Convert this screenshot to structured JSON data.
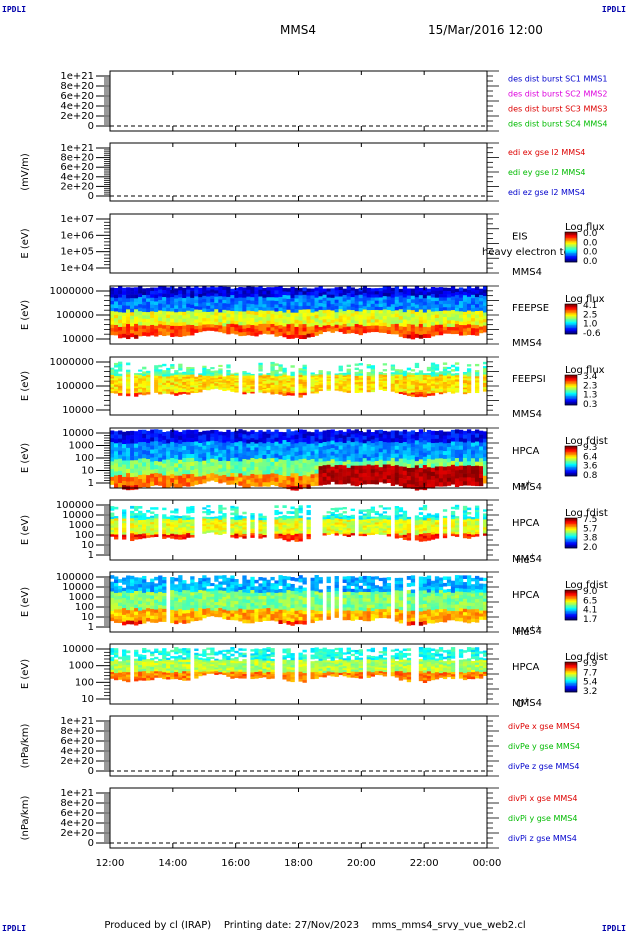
{
  "corner_labels": {
    "tl": "IPDLI",
    "tr": "IPDLI",
    "bl": "IPDLI",
    "br": "IPDLI"
  },
  "header": {
    "spacecraft": "MMS4",
    "datetime": "15/Mar/2016 12:00"
  },
  "footer": {
    "produced_by": "Produced by cl (IRAP)",
    "printing_date": "Printing date: 27/Nov/2023",
    "script_name": "mms_mms4_srvy_vue_web2.cl"
  },
  "colors": {
    "series_red": "#dd0000",
    "series_magenta": "#dd00dd",
    "series_green": "#00bb00",
    "series_blue": "#0000cc"
  },
  "chart_data": [
    {
      "id": "des-dist",
      "type": "line",
      "ylabel": "",
      "yticks": [
        "1e+21",
        "8e+20",
        "6e+20",
        "4e+20",
        "2e+20",
        "0"
      ],
      "series": [
        {
          "name": "des dist burst SC1 MMS1",
          "color": "#0000cc"
        },
        {
          "name": "des dist burst SC2 MMS2",
          "color": "#dd00dd"
        },
        {
          "name": "des dist burst SC3 MMS3",
          "color": "#dd0000"
        },
        {
          "name": "des dist burst SC4 MMS4",
          "color": "#00bb00"
        }
      ]
    },
    {
      "id": "edi-e",
      "type": "line",
      "ylabel": "(mV/m)",
      "yticks": [
        "1e+21",
        "8e+20",
        "6e+20",
        "4e+20",
        "2e+20",
        "0"
      ],
      "series": [
        {
          "name": "edi ex gse l2 MMS4",
          "color": "#dd0000"
        },
        {
          "name": "edi ey gse l2 MMS4",
          "color": "#00bb00"
        },
        {
          "name": "edi ez gse l2 MMS4",
          "color": "#0000cc"
        }
      ]
    },
    {
      "id": "eis",
      "type": "heatmap",
      "ylabel": "E (eV)",
      "yticks": [
        "1e+07",
        "1e+06",
        "1e+05",
        "1e+04"
      ],
      "instrument": [
        "EIS",
        "MMS4"
      ],
      "overlay_text": "heavy electron to",
      "colorbar": {
        "title": "Log flux",
        "ticks": [
          "0.0",
          "0.0",
          "0.0",
          "0.0"
        ]
      }
    },
    {
      "id": "feepse",
      "type": "heatmap",
      "ylabel": "E (eV)",
      "yticks": [
        "1000000",
        "100000",
        "10000"
      ],
      "instrument": [
        "FEEPSE",
        "MMS4"
      ],
      "colorbar": {
        "title": "Log flux",
        "ticks": [
          "4.1",
          "2.5",
          "1.0",
          "-0.6"
        ]
      }
    },
    {
      "id": "feepsi",
      "type": "heatmap",
      "ylabel": "E (eV)",
      "yticks": [
        "1000000",
        "100000",
        "10000"
      ],
      "instrument": [
        "FEEPSI",
        "MMS4"
      ],
      "colorbar": {
        "title": "Log flux",
        "ticks": [
          "3.4",
          "2.3",
          "1.3",
          "0.3"
        ]
      }
    },
    {
      "id": "hpca-h",
      "type": "heatmap",
      "ylabel": "E (eV)",
      "yticks": [
        "10000",
        "1000",
        "100",
        "10",
        "1"
      ],
      "instrument": [
        "HPCA",
        "MMS4"
      ],
      "species": {
        "base": "H",
        "sup": "+"
      },
      "colorbar": {
        "title": "Log fdist",
        "ticks": [
          "9.3",
          "6.4",
          "3.6",
          "0.8"
        ]
      }
    },
    {
      "id": "hpca-he",
      "type": "heatmap",
      "ylabel": "E (eV)",
      "yticks": [
        "100000",
        "10000",
        "1000",
        "100",
        "10",
        "1"
      ],
      "instrument": [
        "HPCA",
        "MMS4"
      ],
      "species": {
        "base": "He",
        "sup": "+"
      },
      "colorbar": {
        "title": "Log fdist",
        "ticks": [
          "7.5",
          "5.7",
          "3.8",
          "2.0"
        ]
      }
    },
    {
      "id": "hpca-hepp",
      "type": "heatmap",
      "ylabel": "E (eV)",
      "yticks": [
        "100000",
        "10000",
        "1000",
        "100",
        "10",
        "1"
      ],
      "instrument": [
        "HPCA",
        "MMS4"
      ],
      "species": {
        "base": "He",
        "sup": "++"
      },
      "colorbar": {
        "title": "Log fdist",
        "ticks": [
          "9.0",
          "6.5",
          "4.1",
          "1.7"
        ]
      }
    },
    {
      "id": "hpca-o",
      "type": "heatmap",
      "ylabel": "E (eV)",
      "yticks": [
        "10000",
        "1000",
        "100",
        "10"
      ],
      "instrument": [
        "HPCA",
        "MMS4"
      ],
      "species": {
        "base": "O",
        "sup": "+"
      },
      "colorbar": {
        "title": "Log fdist",
        "ticks": [
          "9.9",
          "7.7",
          "5.4",
          "3.2"
        ]
      }
    },
    {
      "id": "divpe",
      "type": "line",
      "ylabel": "(nPa/km)",
      "yticks": [
        "1e+21",
        "8e+20",
        "6e+20",
        "4e+20",
        "2e+20",
        "0"
      ],
      "series": [
        {
          "name": "divPe x gse MMS4",
          "color": "#dd0000"
        },
        {
          "name": "divPe y gse MMS4",
          "color": "#00bb00"
        },
        {
          "name": "divPe z gse MMS4",
          "color": "#0000cc"
        }
      ]
    },
    {
      "id": "divpi",
      "type": "line",
      "ylabel": "(nPa/km)",
      "yticks": [
        "1e+21",
        "8e+20",
        "6e+20",
        "4e+20",
        "2e+20",
        "0"
      ],
      "series": [
        {
          "name": "divPi x gse MMS4",
          "color": "#dd0000"
        },
        {
          "name": "divPi y gse MMS4",
          "color": "#00bb00"
        },
        {
          "name": "divPi z gse MMS4",
          "color": "#0000cc"
        }
      ]
    }
  ],
  "time_axis": {
    "ticks": [
      "12:00",
      "14:00",
      "16:00",
      "18:00",
      "20:00",
      "22:00",
      "00:00"
    ]
  }
}
